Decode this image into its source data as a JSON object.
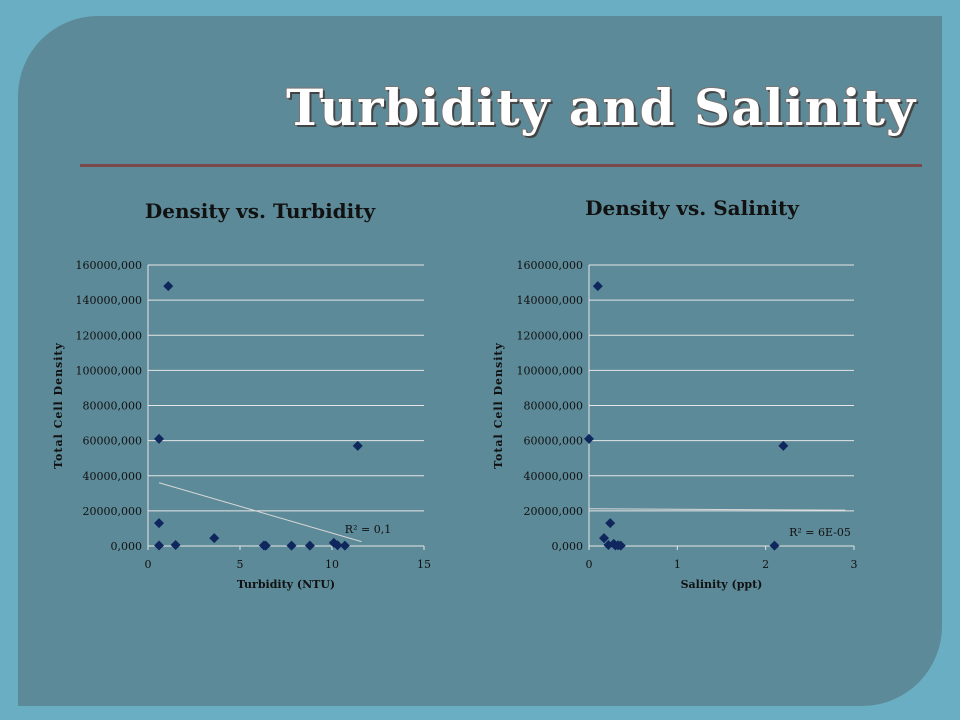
{
  "slide": {
    "title": "Turbidity and Salinity"
  },
  "chart_data": [
    {
      "type": "scatter",
      "title": "Density vs. Turbidity",
      "xlabel": "Turbidity (NTU)",
      "ylabel": "Total Cell Density",
      "xlim": [
        0,
        15
      ],
      "ylim": [
        0,
        160000
      ],
      "xticks": [
        0,
        5,
        10,
        15
      ],
      "yticks": [
        0,
        20000,
        40000,
        60000,
        80000,
        100000,
        120000,
        140000,
        160000
      ],
      "ytick_labels": [
        "0,000",
        "20000,000",
        "40000,000",
        "60000,000",
        "80000,000",
        "100000,000",
        "120000,000",
        "140000,000",
        "160000,000"
      ],
      "xtick_labels": [
        "0",
        "5",
        "10",
        "15"
      ],
      "grid": true,
      "marker_color": "#10275e",
      "points": [
        {
          "x": 1.1,
          "y": 148000
        },
        {
          "x": 0.6,
          "y": 61000
        },
        {
          "x": 0.6,
          "y": 13000
        },
        {
          "x": 0.6,
          "y": 300
        },
        {
          "x": 1.5,
          "y": 600
        },
        {
          "x": 3.6,
          "y": 4500
        },
        {
          "x": 6.3,
          "y": 300
        },
        {
          "x": 6.4,
          "y": 200
        },
        {
          "x": 7.8,
          "y": 200
        },
        {
          "x": 8.8,
          "y": 200
        },
        {
          "x": 10.1,
          "y": 1800
        },
        {
          "x": 10.3,
          "y": 400
        },
        {
          "x": 10.7,
          "y": 200
        },
        {
          "x": 11.4,
          "y": 57000
        }
      ],
      "trendline": {
        "x": [
          0.6,
          11.6
        ],
        "y": [
          36000,
          2500
        ]
      },
      "annotation": "R² = 0,1"
    },
    {
      "type": "scatter",
      "title": "Density vs. Salinity",
      "xlabel": "Salinity (ppt)",
      "ylabel": "Total Cell Density",
      "xlim": [
        0,
        3
      ],
      "ylim": [
        0,
        160000
      ],
      "xticks": [
        0,
        1,
        2,
        3
      ],
      "yticks": [
        0,
        20000,
        40000,
        60000,
        80000,
        100000,
        120000,
        140000,
        160000
      ],
      "ytick_labels": [
        "0,000",
        "20000,000",
        "40000,000",
        "60000,000",
        "80000,000",
        "100000,000",
        "120000,000",
        "140000,000",
        "160000,000"
      ],
      "xtick_labels": [
        "0",
        "1",
        "2",
        "3"
      ],
      "grid": true,
      "marker_color": "#10275e",
      "points": [
        {
          "x": 0.1,
          "y": 148000
        },
        {
          "x": 0.0,
          "y": 61000
        },
        {
          "x": 0.24,
          "y": 13000
        },
        {
          "x": 0.17,
          "y": 4500
        },
        {
          "x": 0.22,
          "y": 600
        },
        {
          "x": 0.28,
          "y": 1200
        },
        {
          "x": 0.3,
          "y": 300
        },
        {
          "x": 0.33,
          "y": 400
        },
        {
          "x": 0.36,
          "y": 200
        },
        {
          "x": 2.1,
          "y": 200
        },
        {
          "x": 2.2,
          "y": 57000
        }
      ],
      "trendline": {
        "x": [
          0.0,
          2.9
        ],
        "y": [
          21200,
          20400
        ]
      },
      "annotation": "R² = 6E-05"
    }
  ]
}
